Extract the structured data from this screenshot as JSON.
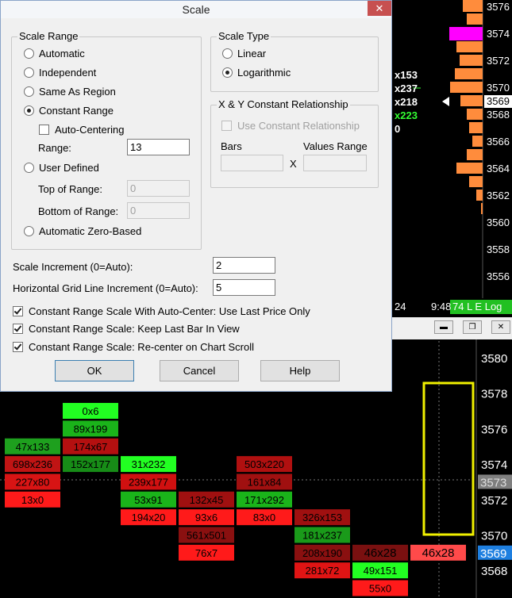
{
  "dialog": {
    "title": "Scale",
    "scale_range": {
      "label": "Scale Range",
      "options": [
        {
          "label": "Automatic",
          "checked": false
        },
        {
          "label": "Independent",
          "checked": false
        },
        {
          "label": "Same As Region",
          "checked": false
        },
        {
          "label": "Constant Range",
          "checked": true
        }
      ],
      "auto_centering": {
        "label": "Auto-Centering",
        "checked": false
      },
      "range": {
        "label": "Range:",
        "value": "13"
      },
      "user_defined": {
        "label": "User Defined",
        "checked": false
      },
      "top_of_range": {
        "label": "Top of Range:",
        "value": "0"
      },
      "bottom_of_range": {
        "label": "Bottom of Range:",
        "value": "0"
      },
      "automatic_zero_based": {
        "label": "Automatic Zero-Based",
        "checked": false
      }
    },
    "scale_type": {
      "label": "Scale Type",
      "options": [
        {
          "label": "Linear",
          "checked": false
        },
        {
          "label": "Logarithmic",
          "checked": true
        }
      ]
    },
    "xy_relationship": {
      "label": "X & Y Constant Relationship",
      "use": {
        "label": "Use Constant Relationship",
        "checked": false
      },
      "bars_label": "Bars",
      "values_range_label": "Values Range",
      "x_label": "X"
    },
    "scale_increment": {
      "label": "Scale Increment (0=Auto):",
      "value": "2"
    },
    "grid_increment": {
      "label": "Horizontal Grid Line Increment (0=Auto):",
      "value": "5"
    },
    "checkboxes": [
      {
        "label": "Constant Range Scale With Auto-Center: Use Last Price Only",
        "checked": true
      },
      {
        "label": "Constant Range Scale: Keep Last Bar In View",
        "checked": true
      },
      {
        "label": "Constant Range Scale: Re-center on Chart Scroll",
        "checked": true
      }
    ],
    "buttons": [
      "OK",
      "Cancel",
      "Help"
    ]
  },
  "top_chart": {
    "price_labels": [
      3576,
      3574,
      3572,
      3570,
      3568,
      3566,
      3564,
      3562,
      3560,
      3558,
      3556
    ],
    "last_price": 3569,
    "fragments": [
      {
        "text": "x153",
        "color": "#ffffff"
      },
      {
        "text": "x237",
        "color": "#ffffff"
      },
      {
        "text": "x218",
        "color": "#ffffff"
      },
      {
        "text": "x223",
        "color": "#33ff33"
      },
      {
        "text": "0",
        "color": "#ffffff"
      }
    ],
    "time_fragment": "24",
    "time": "9:48",
    "status": "74 L E Log"
  },
  "lower_chart": {
    "price_labels": [
      3580,
      3578,
      3576,
      3574,
      3572,
      3570,
      3568
    ],
    "crosshair_price": 3573,
    "last_price": 3569,
    "columns": [
      {
        "cells": [
          {
            "price": 3575,
            "text": "47x133",
            "color": "#1ea01e"
          },
          {
            "price": 3574,
            "text": "698x236",
            "color": "#c01414"
          },
          {
            "price": 3573,
            "text": "227x80",
            "color": "#d81414"
          },
          {
            "price": 3572,
            "text": "13x0",
            "color": "#ff1a1a"
          }
        ]
      },
      {
        "cells": [
          {
            "price": 3577,
            "text": "0x6",
            "color": "#22ff22"
          },
          {
            "price": 3576,
            "text": "89x199",
            "color": "#1ab41a"
          },
          {
            "price": 3575,
            "text": "174x67",
            "color": "#b41010"
          },
          {
            "price": 3574,
            "text": "152x177",
            "color": "#178c17"
          }
        ]
      },
      {
        "cells": [
          {
            "price": 3574,
            "text": "31x232",
            "color": "#22ff22"
          },
          {
            "price": 3573,
            "text": "239x177",
            "color": "#d01010"
          },
          {
            "price": 3572,
            "text": "53x91",
            "color": "#1ab41a"
          },
          {
            "price": 3571,
            "text": "194x20",
            "color": "#ff1a1a"
          }
        ]
      },
      {
        "cells": [
          {
            "price": 3572,
            "text": "132x45",
            "color": "#a01010"
          },
          {
            "price": 3571,
            "text": "93x6",
            "color": "#ff1a1a"
          },
          {
            "price": 3570,
            "text": "561x501",
            "color": "#8a1010"
          },
          {
            "price": 3569,
            "text": "76x7",
            "color": "#ff1a1a"
          }
        ]
      },
      {
        "cells": [
          {
            "price": 3574,
            "text": "503x220",
            "color": "#b01010"
          },
          {
            "price": 3573,
            "text": "161x84",
            "color": "#a01010"
          },
          {
            "price": 3572,
            "text": "171x292",
            "color": "#1ab41a"
          },
          {
            "price": 3571,
            "text": "83x0",
            "color": "#ff1a1a"
          }
        ]
      },
      {
        "cells": [
          {
            "price": 3571,
            "text": "326x153",
            "color": "#a01010"
          },
          {
            "price": 3570,
            "text": "181x237",
            "color": "#1a9a1a"
          },
          {
            "price": 3569,
            "text": "208x190",
            "color": "#8a1010"
          },
          {
            "price": 3568,
            "text": "281x72",
            "color": "#e01414"
          }
        ]
      },
      {
        "cells": [
          {
            "price": 3569,
            "text": "46x28",
            "color": "#7a1010"
          },
          {
            "price": 3568,
            "text": "49x151",
            "color": "#22ff22"
          },
          {
            "price": 3567,
            "text": "55x0",
            "color": "#ff1a1a"
          }
        ]
      },
      {
        "cells": [
          {
            "price": 3569,
            "text": "46x28",
            "color": "#ff4a4a"
          }
        ]
      }
    ]
  }
}
